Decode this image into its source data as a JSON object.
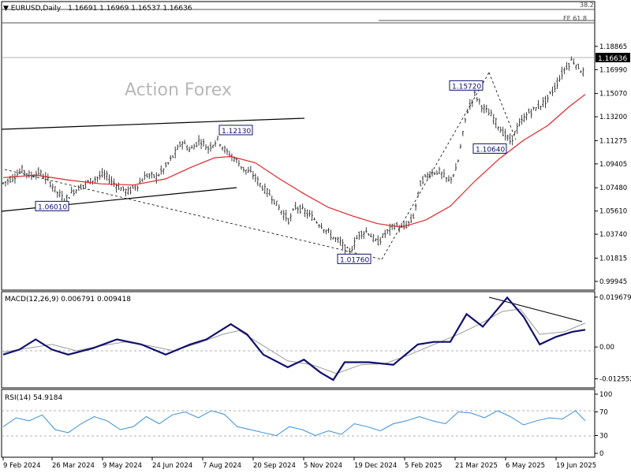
{
  "watermark": "Action Forex",
  "chart_data": [
    {
      "type": "candlestick",
      "title": "EURUSD,Daily",
      "ohlc": "1.16691 1.16969 1.16537 1.16636",
      "current_price": "1.16636",
      "ylim": [
        0.9937,
        1.2025
      ],
      "y_ticks": [
        "1.18865",
        "1.16990",
        "1.15070",
        "1.13200",
        "1.11275",
        "1.09405",
        "1.07480",
        "1.05610",
        "1.03740",
        "1.01815",
        "0.99945"
      ],
      "x_ticks": [
        "9 Feb 2024",
        "26 Mar 2024",
        "9 May 2024",
        "24 Jun 2024",
        "7 Aug 2024",
        "20 Sep 2024",
        "5 Nov 2024",
        "19 Dec 2024",
        "5 Feb 2025",
        "21 Mar 2025",
        "6 May 2025",
        "19 Jun 2025"
      ],
      "fib_labels": [
        "38.2",
        "FE 61.8"
      ],
      "price_labels": [
        {
          "text": "1.12130",
          "price": 1.1213
        },
        {
          "text": "1.06010",
          "price": 1.0601
        },
        {
          "text": "1.15720",
          "price": 1.1572
        },
        {
          "text": "1.10640",
          "price": 1.1064
        },
        {
          "text": "1.01760",
          "price": 1.0176
        }
      ],
      "price_path": [
        {
          "t": 0,
          "p": 1.0785
        },
        {
          "t": 6,
          "p": 1.083
        },
        {
          "t": 12,
          "p": 1.0895
        },
        {
          "t": 17,
          "p": 1.084
        },
        {
          "t": 22,
          "p": 1.0875
        },
        {
          "t": 28,
          "p": 1.0805
        },
        {
          "t": 33,
          "p": 1.0715
        },
        {
          "t": 38,
          "p": 1.065
        },
        {
          "t": 43,
          "p": 1.072
        },
        {
          "t": 50,
          "p": 1.0775
        },
        {
          "t": 56,
          "p": 1.082
        },
        {
          "t": 62,
          "p": 1.0855
        },
        {
          "t": 67,
          "p": 1.08
        },
        {
          "t": 72,
          "p": 1.0745
        },
        {
          "t": 77,
          "p": 1.0715
        },
        {
          "t": 83,
          "p": 1.0775
        },
        {
          "t": 88,
          "p": 1.085
        },
        {
          "t": 94,
          "p": 1.0835
        },
        {
          "t": 99,
          "p": 1.09
        },
        {
          "t": 105,
          "p": 1.101
        },
        {
          "t": 110,
          "p": 1.112
        },
        {
          "t": 115,
          "p": 1.105
        },
        {
          "t": 121,
          "p": 1.1135
        },
        {
          "t": 126,
          "p": 1.1065
        },
        {
          "t": 132,
          "p": 1.114
        },
        {
          "t": 137,
          "p": 1.104
        },
        {
          "t": 143,
          "p": 1.0975
        },
        {
          "t": 148,
          "p": 1.09
        },
        {
          "t": 154,
          "p": 1.085
        },
        {
          "t": 159,
          "p": 1.076
        },
        {
          "t": 165,
          "p": 1.068
        },
        {
          "t": 170,
          "p": 1.058
        },
        {
          "t": 176,
          "p": 1.048
        },
        {
          "t": 180,
          "p": 1.06
        },
        {
          "t": 186,
          "p": 1.055
        },
        {
          "t": 191,
          "p": 1.05
        },
        {
          "t": 197,
          "p": 1.043
        },
        {
          "t": 202,
          "p": 1.036
        },
        {
          "t": 208,
          "p": 1.03
        },
        {
          "t": 213,
          "p": 1.022
        },
        {
          "t": 219,
          "p": 1.038
        },
        {
          "t": 224,
          "p": 1.04
        },
        {
          "t": 230,
          "p": 1.03
        },
        {
          "t": 235,
          "p": 1.038
        },
        {
          "t": 241,
          "p": 1.045
        },
        {
          "t": 246,
          "p": 1.042
        },
        {
          "t": 252,
          "p": 1.05
        },
        {
          "t": 257,
          "p": 1.08
        },
        {
          "t": 263,
          "p": 1.087
        },
        {
          "t": 268,
          "p": 1.088
        },
        {
          "t": 274,
          "p": 1.08
        },
        {
          "t": 279,
          "p": 1.09
        },
        {
          "t": 285,
          "p": 1.135
        },
        {
          "t": 290,
          "p": 1.15
        },
        {
          "t": 296,
          "p": 1.138
        },
        {
          "t": 301,
          "p": 1.132
        },
        {
          "t": 307,
          "p": 1.12
        },
        {
          "t": 312,
          "p": 1.112
        },
        {
          "t": 317,
          "p": 1.125
        },
        {
          "t": 323,
          "p": 1.135
        },
        {
          "t": 328,
          "p": 1.139
        },
        {
          "t": 334,
          "p": 1.145
        },
        {
          "t": 339,
          "p": 1.155
        },
        {
          "t": 345,
          "p": 1.17
        },
        {
          "t": 350,
          "p": 1.178
        },
        {
          "t": 355,
          "p": 1.17
        },
        {
          "t": 358,
          "p": 1.16636
        }
      ],
      "ma_path": [
        {
          "t": 0,
          "p": 1.083
        },
        {
          "t": 20,
          "p": 1.085
        },
        {
          "t": 40,
          "p": 1.081
        },
        {
          "t": 60,
          "p": 1.078
        },
        {
          "t": 80,
          "p": 1.077
        },
        {
          "t": 100,
          "p": 1.082
        },
        {
          "t": 115,
          "p": 1.091
        },
        {
          "t": 130,
          "p": 1.099
        },
        {
          "t": 140,
          "p": 1.1
        },
        {
          "t": 155,
          "p": 1.095
        },
        {
          "t": 170,
          "p": 1.082
        },
        {
          "t": 185,
          "p": 1.07
        },
        {
          "t": 200,
          "p": 1.059
        },
        {
          "t": 215,
          "p": 1.052
        },
        {
          "t": 230,
          "p": 1.046
        },
        {
          "t": 245,
          "p": 1.043
        },
        {
          "t": 260,
          "p": 1.049
        },
        {
          "t": 275,
          "p": 1.06
        },
        {
          "t": 290,
          "p": 1.08
        },
        {
          "t": 305,
          "p": 1.098
        },
        {
          "t": 320,
          "p": 1.113
        },
        {
          "t": 335,
          "p": 1.125
        },
        {
          "t": 348,
          "p": 1.14
        },
        {
          "t": 358,
          "p": 1.15
        }
      ]
    },
    {
      "type": "line",
      "title": "MACD(12,26,9) 0.006791 0.009418",
      "ylim": [
        -0.0155,
        0.0212
      ],
      "y_ticks": [
        "0.019679",
        "0.00",
        "-0.012552"
      ],
      "macd_path": [
        {
          "t": 0,
          "v": -0.003
        },
        {
          "t": 10,
          "v": -0.001
        },
        {
          "t": 20,
          "v": 0.003
        },
        {
          "t": 30,
          "v": -0.001
        },
        {
          "t": 40,
          "v": -0.003
        },
        {
          "t": 55,
          "v": -0.0005
        },
        {
          "t": 70,
          "v": 0.003
        },
        {
          "t": 85,
          "v": 0.001
        },
        {
          "t": 100,
          "v": -0.003
        },
        {
          "t": 115,
          "v": 0.001
        },
        {
          "t": 125,
          "v": 0.003
        },
        {
          "t": 140,
          "v": 0.009
        },
        {
          "t": 150,
          "v": 0.005
        },
        {
          "t": 160,
          "v": -0.003
        },
        {
          "t": 175,
          "v": -0.008
        },
        {
          "t": 185,
          "v": -0.005
        },
        {
          "t": 195,
          "v": -0.01
        },
        {
          "t": 203,
          "v": -0.013
        },
        {
          "t": 210,
          "v": -0.006
        },
        {
          "t": 225,
          "v": -0.006
        },
        {
          "t": 240,
          "v": -0.007
        },
        {
          "t": 255,
          "v": 0.001
        },
        {
          "t": 265,
          "v": 0.002
        },
        {
          "t": 275,
          "v": 0.002
        },
        {
          "t": 285,
          "v": 0.013
        },
        {
          "t": 295,
          "v": 0.008
        },
        {
          "t": 310,
          "v": 0.0195
        },
        {
          "t": 320,
          "v": 0.012
        },
        {
          "t": 330,
          "v": 0.001
        },
        {
          "t": 340,
          "v": 0.004
        },
        {
          "t": 350,
          "v": 0.006
        },
        {
          "t": 358,
          "v": 0.0068
        }
      ],
      "signal_path": [
        {
          "t": 0,
          "v": -0.002
        },
        {
          "t": 15,
          "v": -0.0005
        },
        {
          "t": 30,
          "v": 0.001
        },
        {
          "t": 45,
          "v": -0.0015
        },
        {
          "t": 60,
          "v": 0.0005
        },
        {
          "t": 75,
          "v": 0.002
        },
        {
          "t": 90,
          "v": 0.0005
        },
        {
          "t": 105,
          "v": -0.0015
        },
        {
          "t": 120,
          "v": 0.0015
        },
        {
          "t": 135,
          "v": 0.005
        },
        {
          "t": 145,
          "v": 0.0065
        },
        {
          "t": 160,
          "v": 0.0005
        },
        {
          "t": 175,
          "v": -0.0055
        },
        {
          "t": 190,
          "v": -0.007
        },
        {
          "t": 205,
          "v": -0.0105
        },
        {
          "t": 220,
          "v": -0.007
        },
        {
          "t": 235,
          "v": -0.0065
        },
        {
          "t": 250,
          "v": -0.003
        },
        {
          "t": 265,
          "v": 0.001
        },
        {
          "t": 280,
          "v": 0.005
        },
        {
          "t": 293,
          "v": 0.009
        },
        {
          "t": 307,
          "v": 0.014
        },
        {
          "t": 318,
          "v": 0.015
        },
        {
          "t": 330,
          "v": 0.005
        },
        {
          "t": 345,
          "v": 0.006
        },
        {
          "t": 358,
          "v": 0.0094
        }
      ]
    },
    {
      "type": "line",
      "title": "RSI(14) 54.9184",
      "ylim": [
        0,
        100
      ],
      "y_ticks": [
        "100",
        "70",
        "30",
        "0"
      ],
      "rsi_path": [
        {
          "t": 0,
          "v": 45
        },
        {
          "t": 8,
          "v": 60
        },
        {
          "t": 16,
          "v": 55
        },
        {
          "t": 24,
          "v": 65
        },
        {
          "t": 32,
          "v": 40
        },
        {
          "t": 40,
          "v": 35
        },
        {
          "t": 48,
          "v": 50
        },
        {
          "t": 56,
          "v": 62
        },
        {
          "t": 64,
          "v": 55
        },
        {
          "t": 72,
          "v": 40
        },
        {
          "t": 80,
          "v": 45
        },
        {
          "t": 88,
          "v": 62
        },
        {
          "t": 96,
          "v": 50
        },
        {
          "t": 104,
          "v": 65
        },
        {
          "t": 112,
          "v": 70
        },
        {
          "t": 120,
          "v": 60
        },
        {
          "t": 128,
          "v": 72
        },
        {
          "t": 136,
          "v": 66
        },
        {
          "t": 144,
          "v": 45
        },
        {
          "t": 152,
          "v": 40
        },
        {
          "t": 160,
          "v": 35
        },
        {
          "t": 168,
          "v": 30
        },
        {
          "t": 176,
          "v": 45
        },
        {
          "t": 184,
          "v": 40
        },
        {
          "t": 192,
          "v": 30
        },
        {
          "t": 200,
          "v": 38
        },
        {
          "t": 208,
          "v": 32
        },
        {
          "t": 216,
          "v": 50
        },
        {
          "t": 224,
          "v": 45
        },
        {
          "t": 232,
          "v": 38
        },
        {
          "t": 240,
          "v": 50
        },
        {
          "t": 248,
          "v": 55
        },
        {
          "t": 256,
          "v": 62
        },
        {
          "t": 264,
          "v": 55
        },
        {
          "t": 272,
          "v": 50
        },
        {
          "t": 280,
          "v": 70
        },
        {
          "t": 288,
          "v": 68
        },
        {
          "t": 296,
          "v": 60
        },
        {
          "t": 304,
          "v": 72
        },
        {
          "t": 312,
          "v": 62
        },
        {
          "t": 320,
          "v": 48
        },
        {
          "t": 328,
          "v": 55
        },
        {
          "t": 336,
          "v": 60
        },
        {
          "t": 344,
          "v": 58
        },
        {
          "t": 352,
          "v": 72
        },
        {
          "t": 358,
          "v": 55
        }
      ],
      "rsi_levels": [
        70,
        30
      ]
    }
  ],
  "colors": {
    "candle": "#3a3a3a",
    "ma": "#e0262a",
    "macd": "#101070",
    "signal": "#9a9a9a",
    "rsi": "#3a8fd6",
    "label_border": "#101070",
    "watermark": "#b8b8b8"
  }
}
